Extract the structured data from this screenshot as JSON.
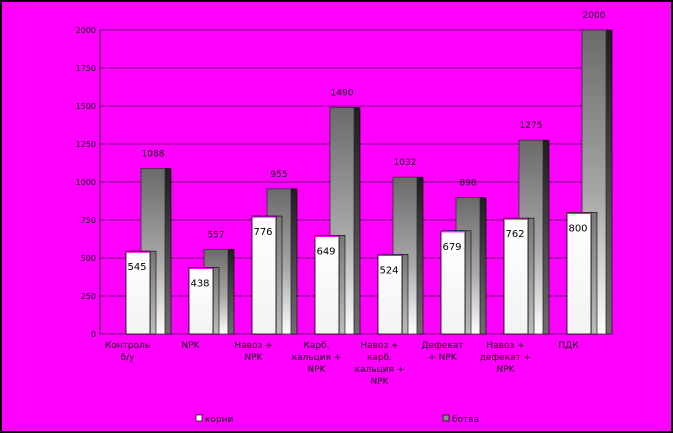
{
  "colors": {
    "background": "#ff00ff",
    "frame": "#000000",
    "gridline": "#000000"
  },
  "chart_data": {
    "type": "bar",
    "title": "",
    "xlabel": "",
    "ylabel": "",
    "ylim": [
      0,
      2000
    ],
    "yticks": [
      "0",
      "250",
      "500",
      "750",
      "1000",
      "1250",
      "1500",
      "1750",
      "2000"
    ],
    "grid": true,
    "legend_position": "bottom",
    "categories": [
      [
        "Контроль",
        "б/у"
      ],
      [
        "NPK"
      ],
      [
        "Навоз +",
        "NPK"
      ],
      [
        "Карб.",
        "кальция +",
        "NPK"
      ],
      [
        "Навоз +",
        "карб.",
        "кальция +",
        "NPK"
      ],
      [
        "Дефекат",
        "+ NPK"
      ],
      [
        "Навоз +",
        "дефекат +",
        "NPK"
      ],
      [
        "ПДК"
      ]
    ],
    "series": [
      {
        "name": "корни",
        "values": [
          545,
          438,
          776,
          649,
          524,
          679,
          762,
          800
        ]
      },
      {
        "name": "ботва",
        "values": [
          1088,
          557,
          955,
          1490,
          1032,
          898,
          1275,
          2000
        ]
      }
    ]
  }
}
